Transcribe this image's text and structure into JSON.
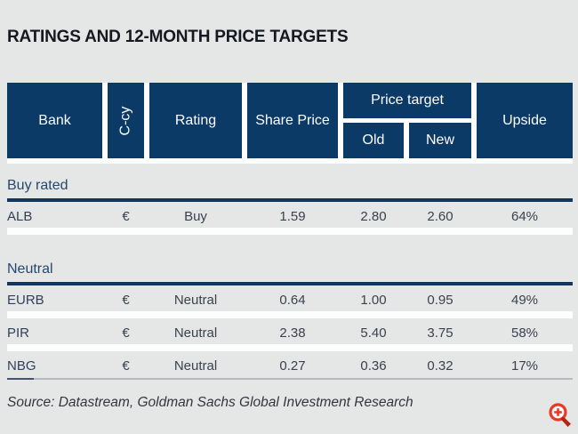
{
  "page": {
    "title": "RATINGS AND 12-MONTH PRICE TARGETS",
    "source": "Source: Datastream, Goldman Sachs Global Investment Research"
  },
  "table": {
    "headers": {
      "bank": "Bank",
      "ccy": "C-cy",
      "rating": "Rating",
      "share_price": "Share Price",
      "price_target": "Price target",
      "old": "Old",
      "new": "New",
      "upside": "Upside"
    },
    "sections": [
      {
        "label": "Buy rated",
        "rows": [
          {
            "bank": "ALB",
            "ccy": "€",
            "rating": "Buy",
            "share_price": "1.59",
            "old": "2.80",
            "new": "2.60",
            "upside": "64%"
          }
        ]
      },
      {
        "label": "Neutral",
        "rows": [
          {
            "bank": "EURB",
            "ccy": "€",
            "rating": "Neutral",
            "share_price": "0.64",
            "old": "1.00",
            "new": "0.95",
            "upside": "49%"
          },
          {
            "bank": "PIR",
            "ccy": "€",
            "rating": "Neutral",
            "share_price": "2.38",
            "old": "5.40",
            "new": "3.75",
            "upside": "58%"
          },
          {
            "bank": "NBG",
            "ccy": "€",
            "rating": "Neutral",
            "share_price": "0.27",
            "old": "0.36",
            "new": "0.32",
            "upside": "17%"
          }
        ]
      }
    ]
  },
  "icons": {
    "zoom": "zoom-plus-icon"
  },
  "colors": {
    "header_bg": "#0c3a66",
    "section_rule": "#12365e",
    "page_bg": "#e5e6e6",
    "zoom_icon_red": "#e63a22",
    "zoom_handle_red": "#b3250f"
  },
  "chart_data": {
    "type": "table",
    "title": "RATINGS AND 12-MONTH PRICE TARGETS",
    "columns": [
      "Bank",
      "C-cy",
      "Rating",
      "Share Price",
      "Price target Old",
      "Price target New",
      "Upside"
    ],
    "sections": [
      {
        "label": "Buy rated",
        "rows": [
          [
            "ALB",
            "€",
            "Buy",
            1.59,
            2.8,
            2.6,
            "64%"
          ]
        ]
      },
      {
        "label": "Neutral",
        "rows": [
          [
            "EURB",
            "€",
            "Neutral",
            0.64,
            1.0,
            0.95,
            "49%"
          ],
          [
            "PIR",
            "€",
            "Neutral",
            2.38,
            5.4,
            3.75,
            "58%"
          ],
          [
            "NBG",
            "€",
            "Neutral",
            0.27,
            0.36,
            0.32,
            "17%"
          ]
        ]
      }
    ],
    "source": "Source: Datastream, Goldman Sachs Global Investment Research"
  }
}
